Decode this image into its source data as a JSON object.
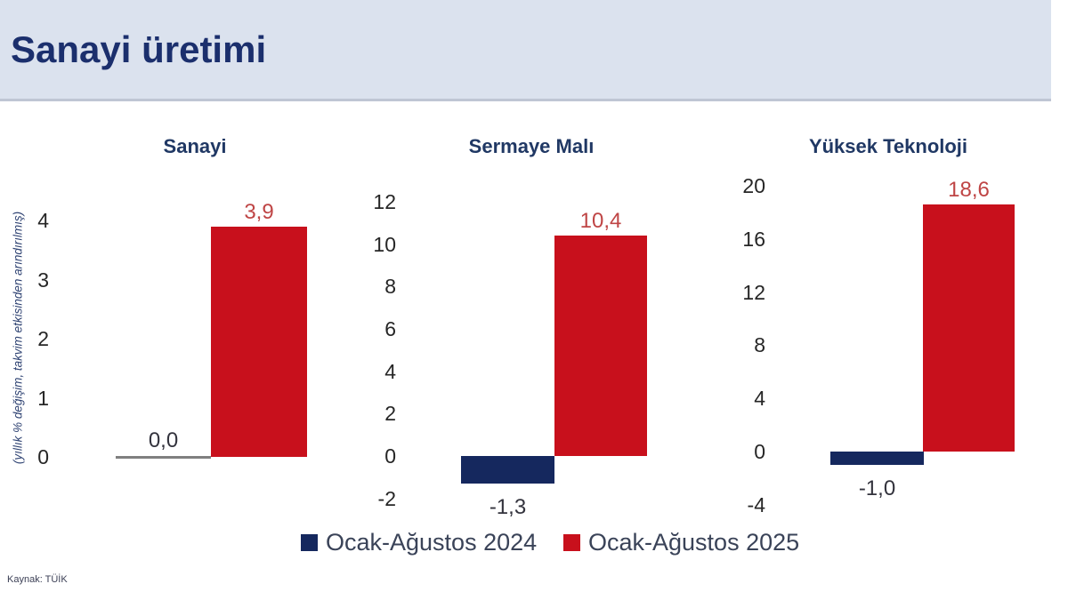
{
  "header": {
    "title": "Sanayi üretimi"
  },
  "y_axis_label": "(yıllık % değişim, takvim etkisinden arındırılmış)",
  "source": "Kaynak: TÜİK",
  "colors": {
    "header_bg": "#dbe2ee",
    "title_navy": "#1b2f6d",
    "chart_title_navy": "#203864",
    "bar_2024_navy": "#15285e",
    "bar_2025_red": "#c8101c",
    "zero_line_gray": "#7f7f7f",
    "pos_label_red": "#bf4545",
    "neg_label_dark": "#33333d"
  },
  "legend": [
    {
      "label": "Ocak-Ağustos 2024",
      "color": "#15285e"
    },
    {
      "label": "Ocak-Ağustos 2025",
      "color": "#c8101c"
    }
  ],
  "chart_data": [
    {
      "type": "bar",
      "title": "Sanayi",
      "categories": [
        "Ocak-Ağustos 2024",
        "Ocak-Ağustos 2025"
      ],
      "values": [
        0.0,
        3.9
      ],
      "value_labels": [
        "0,0",
        "3,9"
      ],
      "yticks": [
        4,
        3,
        2,
        1,
        0
      ],
      "ylim": [
        0,
        4.5
      ],
      "ylabel": "(yıllık % değişim, takvim etkisinden arındırılmış)",
      "grid": false,
      "legend_position": "bottom"
    },
    {
      "type": "bar",
      "title": "Sermaye Malı",
      "categories": [
        "Ocak-Ağustos 2024",
        "Ocak-Ağustos 2025"
      ],
      "values": [
        -1.3,
        10.4
      ],
      "value_labels": [
        "-1,3",
        "10,4"
      ],
      "yticks": [
        12,
        10,
        8,
        6,
        4,
        2,
        0,
        -2
      ],
      "ylim": [
        -2,
        12
      ],
      "grid": false,
      "legend_position": "bottom"
    },
    {
      "type": "bar",
      "title": "Yüksek Teknoloji",
      "categories": [
        "Ocak-Ağustos 2024",
        "Ocak-Ağustos 2025"
      ],
      "values": [
        -1.0,
        18.6
      ],
      "value_labels": [
        "-1,0",
        "18,6"
      ],
      "yticks": [
        20,
        16,
        12,
        8,
        4,
        0,
        -4
      ],
      "ylim": [
        -4,
        20
      ],
      "grid": false,
      "legend_position": "bottom"
    }
  ]
}
